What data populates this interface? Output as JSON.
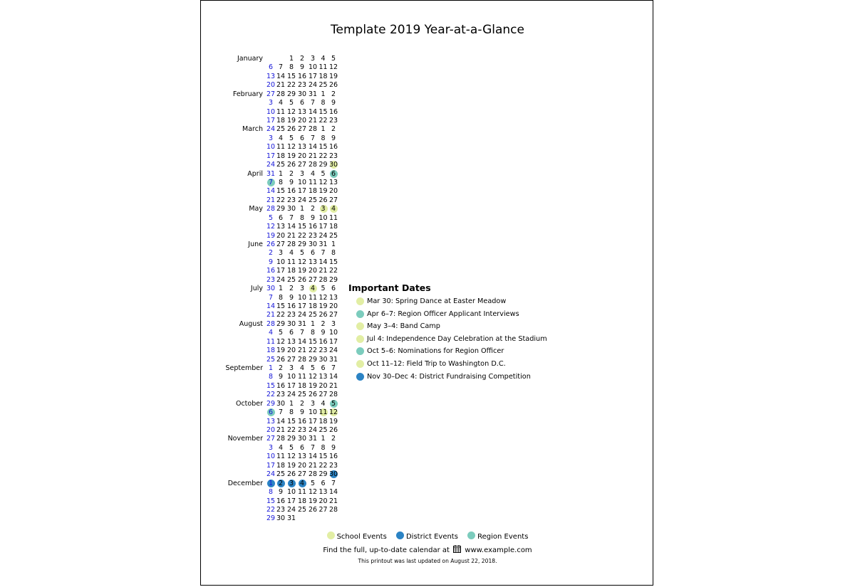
{
  "title": "Template 2019 Year-at-a-Glance",
  "colors": {
    "school": "#e2eea4",
    "district": "#2b83c4",
    "region": "#7cccbd",
    "sunday": "#1515d8"
  },
  "calendar": {
    "weeks": [
      {
        "month": "January",
        "days": [
          "",
          "",
          "1",
          "2",
          "3",
          "4",
          "5"
        ]
      },
      {
        "month": "",
        "days": [
          "6",
          "7",
          "8",
          "9",
          "10",
          "11",
          "12"
        ]
      },
      {
        "month": "",
        "days": [
          "13",
          "14",
          "15",
          "16",
          "17",
          "18",
          "19"
        ]
      },
      {
        "month": "",
        "days": [
          "20",
          "21",
          "22",
          "23",
          "24",
          "25",
          "26"
        ]
      },
      {
        "month": "February",
        "days": [
          "27",
          "28",
          "29",
          "30",
          "31",
          "1",
          "2"
        ]
      },
      {
        "month": "",
        "days": [
          "3",
          "4",
          "5",
          "6",
          "7",
          "8",
          "9"
        ]
      },
      {
        "month": "",
        "days": [
          "10",
          "11",
          "12",
          "13",
          "14",
          "15",
          "16"
        ]
      },
      {
        "month": "",
        "days": [
          "17",
          "18",
          "19",
          "20",
          "21",
          "22",
          "23"
        ]
      },
      {
        "month": "March",
        "days": [
          "24",
          "25",
          "26",
          "27",
          "28",
          "1",
          "2"
        ]
      },
      {
        "month": "",
        "days": [
          "3",
          "4",
          "5",
          "6",
          "7",
          "8",
          "9"
        ]
      },
      {
        "month": "",
        "days": [
          "10",
          "11",
          "12",
          "13",
          "14",
          "15",
          "16"
        ]
      },
      {
        "month": "",
        "days": [
          "17",
          "18",
          "19",
          "20",
          "21",
          "22",
          "23"
        ]
      },
      {
        "month": "",
        "days": [
          "24",
          "25",
          "26",
          "27",
          "28",
          "29",
          "30"
        ],
        "marks": {
          "6": "school"
        }
      },
      {
        "month": "April",
        "days": [
          "31",
          "1",
          "2",
          "3",
          "4",
          "5",
          "6"
        ],
        "marks": {
          "6": "region"
        }
      },
      {
        "month": "",
        "days": [
          "7",
          "8",
          "9",
          "10",
          "11",
          "12",
          "13"
        ],
        "marks": {
          "0": "region"
        }
      },
      {
        "month": "",
        "days": [
          "14",
          "15",
          "16",
          "17",
          "18",
          "19",
          "20"
        ]
      },
      {
        "month": "",
        "days": [
          "21",
          "22",
          "23",
          "24",
          "25",
          "26",
          "27"
        ]
      },
      {
        "month": "May",
        "days": [
          "28",
          "29",
          "30",
          "1",
          "2",
          "3",
          "4"
        ],
        "marks": {
          "5": "school",
          "6": "school"
        }
      },
      {
        "month": "",
        "days": [
          "5",
          "6",
          "7",
          "8",
          "9",
          "10",
          "11"
        ]
      },
      {
        "month": "",
        "days": [
          "12",
          "13",
          "14",
          "15",
          "16",
          "17",
          "18"
        ]
      },
      {
        "month": "",
        "days": [
          "19",
          "20",
          "21",
          "22",
          "23",
          "24",
          "25"
        ]
      },
      {
        "month": "June",
        "days": [
          "26",
          "27",
          "28",
          "29",
          "30",
          "31",
          "1"
        ]
      },
      {
        "month": "",
        "days": [
          "2",
          "3",
          "4",
          "5",
          "6",
          "7",
          "8"
        ]
      },
      {
        "month": "",
        "days": [
          "9",
          "10",
          "11",
          "12",
          "13",
          "14",
          "15"
        ]
      },
      {
        "month": "",
        "days": [
          "16",
          "17",
          "18",
          "19",
          "20",
          "21",
          "22"
        ]
      },
      {
        "month": "",
        "days": [
          "23",
          "24",
          "25",
          "26",
          "27",
          "28",
          "29"
        ]
      },
      {
        "month": "July",
        "days": [
          "30",
          "1",
          "2",
          "3",
          "4",
          "5",
          "6"
        ],
        "marks": {
          "4": "school"
        }
      },
      {
        "month": "",
        "days": [
          "7",
          "8",
          "9",
          "10",
          "11",
          "12",
          "13"
        ]
      },
      {
        "month": "",
        "days": [
          "14",
          "15",
          "16",
          "17",
          "18",
          "19",
          "20"
        ]
      },
      {
        "month": "",
        "days": [
          "21",
          "22",
          "23",
          "24",
          "25",
          "26",
          "27"
        ]
      },
      {
        "month": "August",
        "days": [
          "28",
          "29",
          "30",
          "31",
          "1",
          "2",
          "3"
        ]
      },
      {
        "month": "",
        "days": [
          "4",
          "5",
          "6",
          "7",
          "8",
          "9",
          "10"
        ]
      },
      {
        "month": "",
        "days": [
          "11",
          "12",
          "13",
          "14",
          "15",
          "16",
          "17"
        ]
      },
      {
        "month": "",
        "days": [
          "18",
          "19",
          "20",
          "21",
          "22",
          "23",
          "24"
        ]
      },
      {
        "month": "",
        "days": [
          "25",
          "26",
          "27",
          "28",
          "29",
          "30",
          "31"
        ]
      },
      {
        "month": "September",
        "days": [
          "1",
          "2",
          "3",
          "4",
          "5",
          "6",
          "7"
        ]
      },
      {
        "month": "",
        "days": [
          "8",
          "9",
          "10",
          "11",
          "12",
          "13",
          "14"
        ]
      },
      {
        "month": "",
        "days": [
          "15",
          "16",
          "17",
          "18",
          "19",
          "20",
          "21"
        ]
      },
      {
        "month": "",
        "days": [
          "22",
          "23",
          "24",
          "25",
          "26",
          "27",
          "28"
        ]
      },
      {
        "month": "October",
        "days": [
          "29",
          "30",
          "1",
          "2",
          "3",
          "4",
          "5"
        ],
        "marks": {
          "6": "region"
        }
      },
      {
        "month": "",
        "days": [
          "6",
          "7",
          "8",
          "9",
          "10",
          "11",
          "12"
        ],
        "marks": {
          "0": "region",
          "5": "school",
          "6": "school"
        }
      },
      {
        "month": "",
        "days": [
          "13",
          "14",
          "15",
          "16",
          "17",
          "18",
          "19"
        ]
      },
      {
        "month": "",
        "days": [
          "20",
          "21",
          "22",
          "23",
          "24",
          "25",
          "26"
        ]
      },
      {
        "month": "November",
        "days": [
          "27",
          "28",
          "29",
          "30",
          "31",
          "1",
          "2"
        ]
      },
      {
        "month": "",
        "days": [
          "3",
          "4",
          "5",
          "6",
          "7",
          "8",
          "9"
        ]
      },
      {
        "month": "",
        "days": [
          "10",
          "11",
          "12",
          "13",
          "14",
          "15",
          "16"
        ]
      },
      {
        "month": "",
        "days": [
          "17",
          "18",
          "19",
          "20",
          "21",
          "22",
          "23"
        ]
      },
      {
        "month": "",
        "days": [
          "24",
          "25",
          "26",
          "27",
          "28",
          "29",
          "30"
        ],
        "marks": {
          "6": "district"
        }
      },
      {
        "month": "December",
        "days": [
          "1",
          "2",
          "3",
          "4",
          "5",
          "6",
          "7"
        ],
        "marks": {
          "0": "district",
          "1": "district",
          "2": "district",
          "3": "district"
        }
      },
      {
        "month": "",
        "days": [
          "8",
          "9",
          "10",
          "11",
          "12",
          "13",
          "14"
        ]
      },
      {
        "month": "",
        "days": [
          "15",
          "16",
          "17",
          "18",
          "19",
          "20",
          "21"
        ]
      },
      {
        "month": "",
        "days": [
          "22",
          "23",
          "24",
          "25",
          "26",
          "27",
          "28"
        ]
      },
      {
        "month": "",
        "days": [
          "29",
          "30",
          "31",
          "",
          "",
          "",
          ""
        ]
      }
    ]
  },
  "important_dates": {
    "heading": "Important Dates",
    "items": [
      {
        "type": "school",
        "text": "Mar 30: Spring Dance at Easter Meadow"
      },
      {
        "type": "region",
        "text": "Apr 6–7: Region Officer Applicant Interviews"
      },
      {
        "type": "school",
        "text": "May 3–4: Band Camp"
      },
      {
        "type": "school",
        "text": "Jul 4: Independence Day Celebration at the Stadium"
      },
      {
        "type": "region",
        "text": "Oct 5–6: Nominations for Region Officer"
      },
      {
        "type": "school",
        "text": "Oct 11–12: Field Trip to Washington D.C."
      },
      {
        "type": "district",
        "text": "Nov 30–Dec 4: District Fundraising Competition"
      }
    ]
  },
  "legend": {
    "school": "School Events",
    "district": "District Events",
    "region": "Region Events"
  },
  "footer": {
    "link_prefix": "Find the full, up-to-date calendar at",
    "calendar_icon": "calendar-icon",
    "url": "www.example.com",
    "updated": "This printout was last updated on August 22, 2018."
  }
}
